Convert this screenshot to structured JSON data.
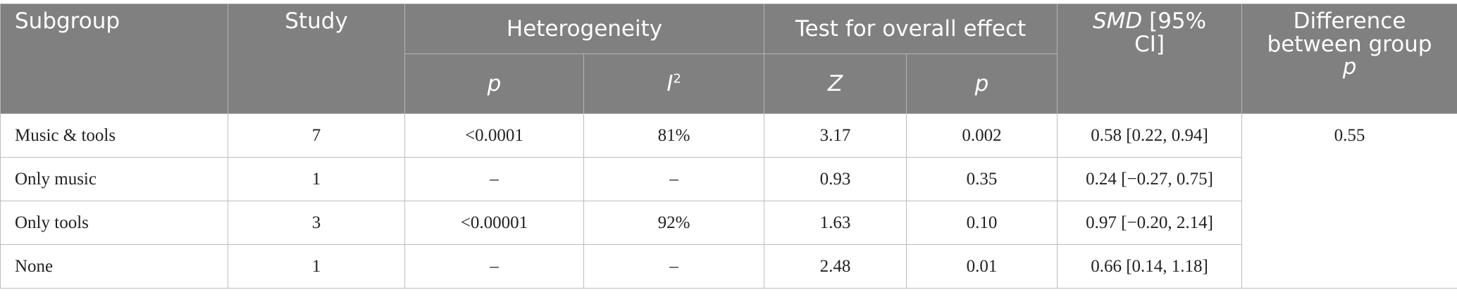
{
  "table": {
    "header": {
      "subgroup": "Subgroup",
      "study": "Study",
      "heterogeneity": "Heterogeneity",
      "overall_effect": "Test for overall effect",
      "smd": {
        "italic": "SMD",
        "rest": "[95% CI]"
      },
      "difference": {
        "text": "Difference between group",
        "italic": "p"
      },
      "sub": [
        {
          "italic": "p"
        },
        {
          "italic": "I",
          "sup": "2"
        },
        {
          "italic": "Z"
        },
        {
          "italic": "p"
        }
      ]
    },
    "rows": [
      [
        "Music & tools",
        "7",
        "<0.0001",
        "81%",
        "3.17",
        "0.002",
        "0.58 [0.22, 0.94]"
      ],
      [
        "Only music",
        "1",
        "–",
        "–",
        "0.93",
        "0.35",
        "0.24 [−0.27, 0.75]"
      ],
      [
        "Only tools",
        "3",
        "<0.00001",
        "92%",
        "1.63",
        "0.10",
        "0.97 [−0.20, 2.14]"
      ],
      [
        "None",
        "1",
        "–",
        "–",
        "2.48",
        "0.01",
        "0.66 [0.14, 1.18]"
      ]
    ],
    "difference_value": "0.55"
  }
}
